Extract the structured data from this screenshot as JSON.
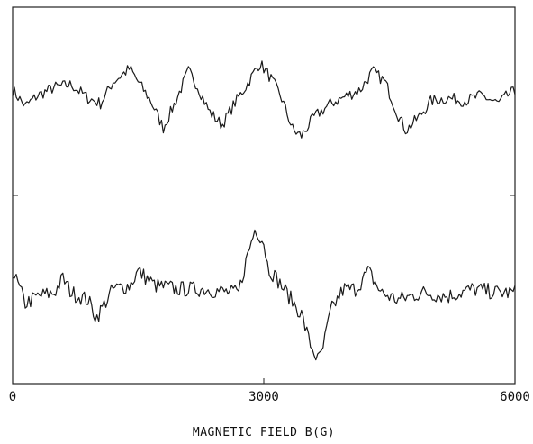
{
  "chart_data": {
    "type": "line",
    "title": "",
    "xlabel": "MAGNETIC FIELD B(G)",
    "ylabel": "",
    "xlim": [
      0,
      6000
    ],
    "xticks": [
      0,
      3000,
      6000
    ],
    "tick_labels": [
      "0",
      "3000",
      "6000"
    ],
    "grid": false,
    "stroke_color": "#1a1a1a",
    "series": [
      {
        "panel": "upper",
        "x": [
          0,
          150,
          300,
          500,
          700,
          900,
          1050,
          1200,
          1400,
          1500,
          1650,
          1800,
          1950,
          2100,
          2200,
          2350,
          2500,
          2650,
          2800,
          2950,
          3050,
          3200,
          3350,
          3450,
          3600,
          3800,
          4000,
          4150,
          4300,
          4450,
          4600,
          4700,
          4850,
          5000,
          5200,
          5400,
          5600,
          5800,
          5950,
          6000
        ],
        "values": [
          0.2,
          -0.1,
          0.1,
          0.25,
          0.3,
          0.05,
          -0.05,
          0.35,
          0.6,
          0.35,
          0.0,
          -0.5,
          0.0,
          0.55,
          0.3,
          -0.2,
          -0.45,
          -0.05,
          0.3,
          0.7,
          0.5,
          0.1,
          -0.55,
          -0.65,
          -0.3,
          -0.05,
          0.1,
          0.2,
          0.55,
          0.35,
          -0.25,
          -0.55,
          -0.3,
          0.0,
          0.05,
          0.0,
          0.1,
          -0.05,
          0.15,
          0.15
        ]
      },
      {
        "panel": "lower",
        "x": [
          0,
          150,
          300,
          500,
          600,
          700,
          900,
          1000,
          1200,
          1400,
          1500,
          1700,
          2000,
          2300,
          2600,
          2700,
          2800,
          2900,
          3000,
          3050,
          3150,
          3300,
          3450,
          3550,
          3650,
          3700,
          3800,
          3950,
          4100,
          4250,
          4400,
          4600,
          4900,
          5200,
          5500,
          5800,
          6000
        ],
        "values": [
          0.3,
          -0.15,
          -0.05,
          0.0,
          0.2,
          0.0,
          -0.1,
          -0.35,
          0.05,
          0.1,
          0.3,
          0.1,
          0.05,
          0.05,
          0.0,
          0.0,
          0.5,
          0.9,
          0.7,
          0.35,
          0.2,
          -0.05,
          -0.3,
          -0.7,
          -0.95,
          -0.8,
          -0.25,
          0.05,
          0.05,
          0.3,
          0.0,
          -0.1,
          0.0,
          -0.05,
          0.05,
          0.0,
          0.0
        ]
      }
    ]
  }
}
